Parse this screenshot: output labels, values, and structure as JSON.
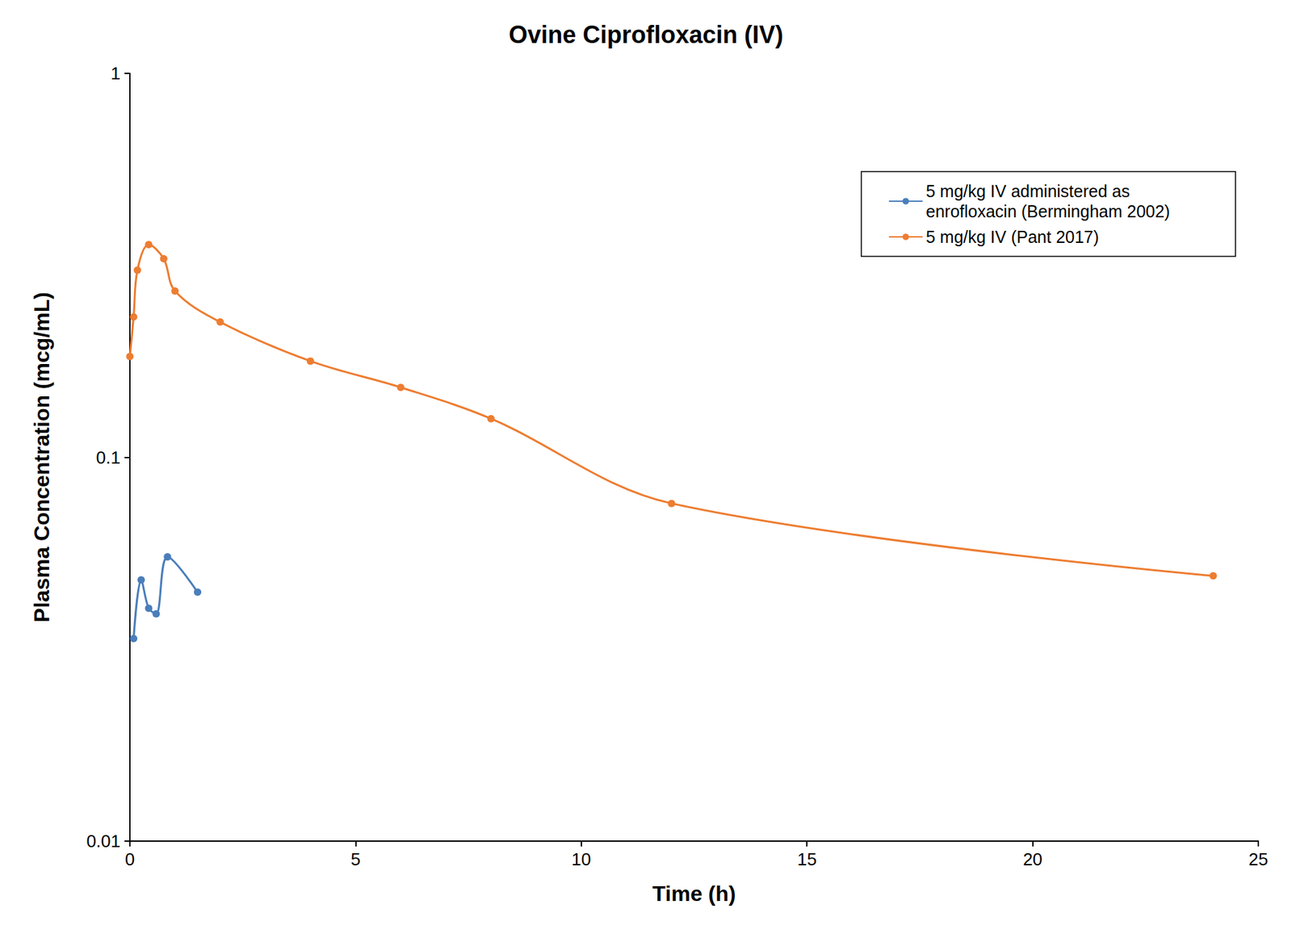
{
  "chart_data": {
    "type": "line",
    "title": "Ovine Ciprofloxacin (IV)",
    "x_label": "Time (h)",
    "y_label": "Plasma Concentration (mcg/mL)",
    "log": "y",
    "grid": false,
    "legend": "upper right",
    "marker": "circle",
    "line_style": "smooth",
    "xlim": [
      0,
      25
    ],
    "xticks": [
      0,
      5,
      10,
      15,
      20,
      25
    ],
    "ylim": [
      0.01,
      1
    ],
    "yticks": [
      0.01,
      0.1,
      1
    ],
    "series": [
      {
        "name": "5 mg/kg IV administered as enrofloxacin (Bermingham 2002)",
        "color": "#4a7ebb",
        "x": [
          0.083,
          0.25,
          0.417,
          0.583,
          0.833,
          1.5
        ],
        "values": [
          0.0337,
          0.0479,
          0.0404,
          0.0391,
          0.055,
          0.0445
        ]
      },
      {
        "name": "5 mg/kg IV (Pant 2017)",
        "color": "#ed7d31",
        "x": [
          0,
          0.083,
          0.167,
          0.417,
          0.75,
          1,
          2,
          4,
          6,
          8,
          12,
          24
        ],
        "values": [
          0.183,
          0.232,
          0.307,
          0.358,
          0.329,
          0.271,
          0.225,
          0.178,
          0.152,
          0.126,
          0.0758,
          0.0491
        ]
      }
    ]
  }
}
